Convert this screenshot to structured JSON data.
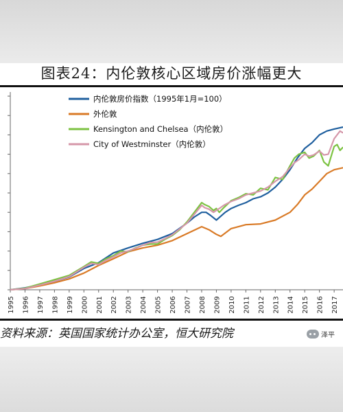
{
  "page": {
    "title": "图表24：内伦敦核心区域房价涨幅更大",
    "source": "资料来源：英国国家统计办公室，恒大研究院",
    "watermark_text": "泽平",
    "watermark_icon": "wechat-icon"
  },
  "chart_data": {
    "type": "line",
    "title": "图表24：内伦敦核心区域房价涨幅更大",
    "xlabel": "",
    "ylabel": "",
    "x_ticks": [
      "1995",
      "1996",
      "1997",
      "1998",
      "1999",
      "2000",
      "2001",
      "2002",
      "2003",
      "2004",
      "2005",
      "2006",
      "2007",
      "2008",
      "2009",
      "2010",
      "2011",
      "2012",
      "2013",
      "2014",
      "2015",
      "2016",
      "2017"
    ],
    "xlim": [
      1995,
      2017.6
    ],
    "ylim": [
      100,
      600
    ],
    "y_tick_values": [
      100,
      150,
      200,
      250,
      300,
      350,
      400,
      450,
      500,
      550,
      600
    ],
    "y_tick_labels_visible": false,
    "grid": false,
    "legend_position": "top-center",
    "series": [
      {
        "name": "内伦敦房价指数（1995年1月=100）",
        "color": "#1f5f9e",
        "x": [
          1995.0,
          1996.0,
          1997.0,
          1998.0,
          1999.0,
          2000.0,
          2001.0,
          2002.0,
          2003.0,
          2004.0,
          2005.0,
          2006.0,
          2007.0,
          2007.5,
          2008.0,
          2008.3,
          2008.6,
          2009.0,
          2009.3,
          2009.6,
          2010.0,
          2010.5,
          2011.0,
          2011.5,
          2012.0,
          2012.5,
          2013.0,
          2013.5,
          2014.0,
          2014.5,
          2015.0,
          2015.5,
          2016.0,
          2016.5,
          2017.0,
          2017.6
        ],
        "y": [
          100,
          105,
          113,
          122,
          133,
          155,
          170,
          195,
          208,
          220,
          230,
          245,
          272,
          288,
          300,
          300,
          292,
          280,
          290,
          300,
          310,
          318,
          325,
          335,
          340,
          350,
          365,
          385,
          410,
          440,
          465,
          480,
          500,
          510,
          515,
          520
        ]
      },
      {
        "name": "外伦敦",
        "color": "#d97a26",
        "x": [
          1995.0,
          1996.0,
          1997.0,
          1998.0,
          1999.0,
          2000.0,
          2001.0,
          2002.0,
          2003.0,
          2004.0,
          2005.0,
          2006.0,
          2007.0,
          2008.0,
          2008.5,
          2009.0,
          2009.3,
          2010.0,
          2011.0,
          2012.0,
          2013.0,
          2014.0,
          2014.5,
          2015.0,
          2015.5,
          2016.0,
          2016.5,
          2017.0,
          2017.6
        ],
        "y": [
          100,
          103,
          110,
          118,
          128,
          143,
          163,
          180,
          198,
          208,
          215,
          227,
          245,
          263,
          255,
          243,
          238,
          258,
          268,
          270,
          280,
          300,
          320,
          345,
          360,
          380,
          400,
          410,
          415
        ]
      },
      {
        "name": "Kensington and Chelsea（内伦敦）",
        "color": "#7cc242",
        "x": [
          1995.0,
          1996.0,
          1997.0,
          1998.0,
          1999.0,
          2000.0,
          2000.5,
          2001.0,
          2001.5,
          2002.0,
          2002.5,
          2003.0,
          2003.5,
          2004.0,
          2004.5,
          2005.0,
          2005.5,
          2006.0,
          2006.5,
          2007.0,
          2007.5,
          2008.0,
          2008.2,
          2008.5,
          2008.8,
          2009.0,
          2009.2,
          2009.5,
          2010.0,
          2010.5,
          2011.0,
          2011.5,
          2012.0,
          2012.5,
          2013.0,
          2013.5,
          2014.0,
          2014.3,
          2014.6,
          2015.0,
          2015.3,
          2015.6,
          2016.0,
          2016.3,
          2016.6,
          2017.0,
          2017.2,
          2017.4,
          2017.6
        ],
        "y": [
          100,
          104,
          115,
          126,
          137,
          160,
          172,
          168,
          180,
          188,
          200,
          198,
          208,
          215,
          218,
          218,
          230,
          240,
          255,
          275,
          300,
          325,
          320,
          315,
          305,
          310,
          300,
          312,
          330,
          338,
          348,
          345,
          362,
          358,
          390,
          385,
          420,
          440,
          450,
          455,
          440,
          445,
          460,
          430,
          420,
          470,
          475,
          460,
          468
        ]
      },
      {
        "name": "City of Westminster（内伦敦）",
        "color": "#d597a9",
        "x": [
          1995.0,
          1996.0,
          1997.0,
          1998.0,
          1999.0,
          2000.0,
          2000.5,
          2001.0,
          2001.5,
          2002.0,
          2002.5,
          2003.0,
          2003.5,
          2004.0,
          2004.5,
          2005.0,
          2005.5,
          2006.0,
          2006.5,
          2007.0,
          2007.5,
          2008.0,
          2008.2,
          2008.5,
          2008.8,
          2009.0,
          2009.2,
          2009.5,
          2010.0,
          2010.5,
          2011.0,
          2011.5,
          2012.0,
          2012.5,
          2013.0,
          2013.5,
          2014.0,
          2014.3,
          2014.6,
          2015.0,
          2015.3,
          2015.6,
          2016.0,
          2016.3,
          2016.6,
          2017.0,
          2017.2,
          2017.4,
          2017.6
        ],
        "y": [
          100,
          103,
          112,
          122,
          134,
          158,
          168,
          165,
          176,
          185,
          195,
          200,
          207,
          215,
          222,
          223,
          232,
          242,
          257,
          272,
          295,
          318,
          312,
          308,
          300,
          305,
          310,
          318,
          328,
          335,
          345,
          350,
          355,
          365,
          380,
          392,
          415,
          428,
          436,
          450,
          445,
          448,
          458,
          448,
          450,
          490,
          500,
          510,
          505
        ]
      }
    ]
  }
}
